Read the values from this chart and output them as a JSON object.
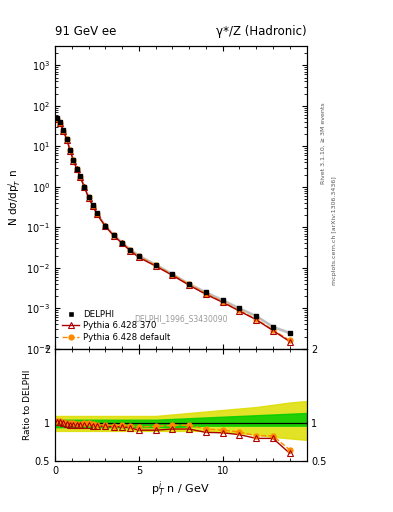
{
  "title_left": "91 GeV ee",
  "title_right": "γ*/Z (Hadronic)",
  "ylabel_main": "N dσ/dp$^i_T$ n",
  "xlabel": "p$^i_T$ n / GeV",
  "ylabel_ratio": "Ratio to DELPHI",
  "watermark": "DELPHI_1996_S3430090",
  "right_label": "Rivet 3.1.10, ≥ 3M events",
  "right_label2": "mcplots.cern.ch [arXiv:1306.3436]",
  "data_x": [
    0.1,
    0.3,
    0.5,
    0.7,
    0.9,
    1.1,
    1.3,
    1.5,
    1.75,
    2.0,
    2.25,
    2.5,
    3.0,
    3.5,
    4.0,
    4.5,
    5.0,
    6.0,
    7.0,
    8.0,
    9.0,
    10.0,
    11.0,
    12.0,
    13.0,
    14.0
  ],
  "data_y": [
    50.0,
    40.0,
    25.0,
    15.0,
    8.0,
    4.5,
    2.8,
    1.8,
    1.0,
    0.55,
    0.35,
    0.22,
    0.11,
    0.065,
    0.042,
    0.028,
    0.02,
    0.012,
    0.007,
    0.004,
    0.0025,
    0.0016,
    0.001,
    0.00065,
    0.00035,
    0.00025
  ],
  "data_yerr": [
    2.5,
    2.0,
    1.2,
    0.75,
    0.4,
    0.22,
    0.14,
    0.09,
    0.05,
    0.028,
    0.018,
    0.011,
    0.005,
    0.003,
    0.002,
    0.0014,
    0.001,
    0.0006,
    0.00035,
    0.0002,
    0.000125,
    8e-05,
    5e-05,
    3e-05,
    1.8e-05,
    1.3e-05
  ],
  "pythia370_y": [
    48.0,
    38.0,
    24.0,
    14.5,
    7.8,
    4.4,
    2.7,
    1.75,
    0.98,
    0.54,
    0.34,
    0.21,
    0.105,
    0.062,
    0.04,
    0.026,
    0.018,
    0.011,
    0.0065,
    0.0037,
    0.0022,
    0.0014,
    0.00085,
    0.00052,
    0.00028,
    0.00015
  ],
  "pythia_default_y": [
    48.5,
    38.5,
    24.5,
    15.0,
    8.0,
    4.5,
    2.75,
    1.78,
    1.0,
    0.55,
    0.345,
    0.215,
    0.107,
    0.063,
    0.041,
    0.027,
    0.019,
    0.0115,
    0.0068,
    0.0039,
    0.0023,
    0.00145,
    0.00088,
    0.00054,
    0.00029,
    0.00016
  ],
  "ratio_370_y": [
    1.02,
    1.02,
    1.01,
    0.99,
    0.98,
    0.98,
    0.975,
    0.975,
    0.975,
    0.975,
    0.97,
    0.965,
    0.96,
    0.955,
    0.955,
    0.94,
    0.91,
    0.91,
    0.925,
    0.925,
    0.88,
    0.875,
    0.85,
    0.8,
    0.8,
    0.6
  ],
  "ratio_default_y": [
    1.03,
    1.03,
    1.02,
    1.01,
    1.005,
    1.005,
    0.99,
    0.995,
    1.0,
    1.0,
    0.99,
    0.98,
    0.975,
    0.97,
    0.977,
    0.966,
    0.952,
    0.96,
    0.975,
    0.975,
    0.925,
    0.91,
    0.885,
    0.835,
    0.835,
    0.645
  ],
  "band_x": [
    0.0,
    0.5,
    1.0,
    2.0,
    3.0,
    4.0,
    5.0,
    6.0,
    7.0,
    8.0,
    9.0,
    10.0,
    11.0,
    12.0,
    13.0,
    14.0,
    15.0
  ],
  "band_yellow_low": [
    0.9,
    0.9,
    0.9,
    0.9,
    0.9,
    0.9,
    0.9,
    0.9,
    0.9,
    0.9,
    0.9,
    0.88,
    0.87,
    0.85,
    0.82,
    0.8,
    0.78
  ],
  "band_yellow_high": [
    1.1,
    1.1,
    1.1,
    1.1,
    1.1,
    1.1,
    1.1,
    1.1,
    1.12,
    1.14,
    1.16,
    1.18,
    1.2,
    1.22,
    1.25,
    1.28,
    1.3
  ],
  "band_green_low": [
    0.95,
    0.95,
    0.95,
    0.95,
    0.95,
    0.95,
    0.95,
    0.95,
    0.95,
    0.96,
    0.97,
    0.97,
    0.97,
    0.97,
    0.97,
    0.97,
    0.97
  ],
  "band_green_high": [
    1.05,
    1.05,
    1.05,
    1.05,
    1.05,
    1.05,
    1.05,
    1.05,
    1.06,
    1.07,
    1.08,
    1.09,
    1.1,
    1.11,
    1.12,
    1.13,
    1.14
  ],
  "color_data": "#000000",
  "color_pythia370": "#aa0000",
  "color_default": "#ff8800",
  "color_green_band": "#00cc00",
  "color_yellow_band": "#dddd00",
  "ylim_main": [
    0.0001,
    3000.0
  ],
  "ylim_ratio": [
    0.5,
    2.0
  ],
  "xlim": [
    0.0,
    15.0
  ]
}
